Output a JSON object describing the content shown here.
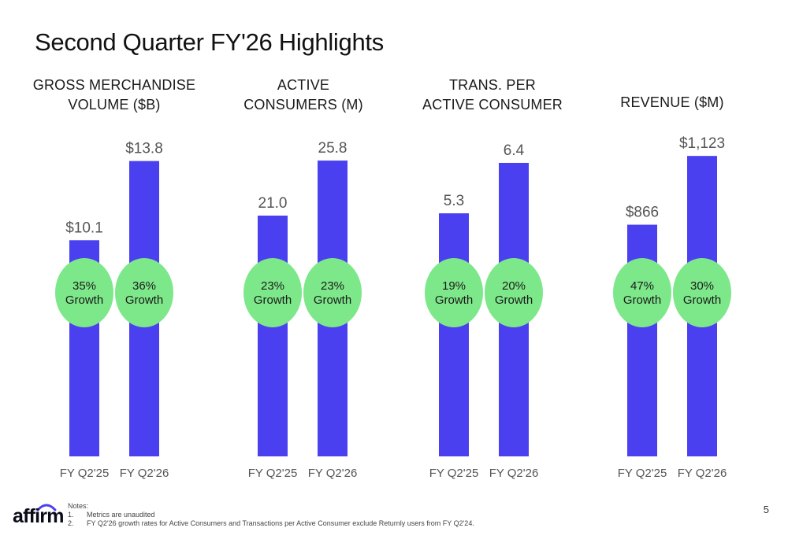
{
  "title": "Second Quarter FY'26 Highlights",
  "colors": {
    "bar": "#4b40f0",
    "growth_bubble": "#7de88a",
    "text": "#1a1a1a",
    "value_label": "#555555"
  },
  "chart_data": [
    {
      "type": "bar",
      "title_lines": [
        "GROSS MERCHANDISE",
        "VOLUME ($B)"
      ],
      "categories": [
        "FY Q2'25",
        "FY Q2'26"
      ],
      "values": [
        10.1,
        13.8
      ],
      "value_labels": [
        "$10.1",
        "$13.8"
      ],
      "growth": [
        [
          "35%",
          "Growth"
        ],
        [
          "36%",
          "Growth"
        ]
      ],
      "ylim": [
        0,
        15.0
      ]
    },
    {
      "type": "bar",
      "title_lines": [
        "ACTIVE",
        "CONSUMERS (M)"
      ],
      "categories": [
        "FY Q2'25",
        "FY Q2'26"
      ],
      "values": [
        21.0,
        25.8
      ],
      "value_labels": [
        "21.0",
        "25.8"
      ],
      "growth": [
        [
          "23%",
          "Growth"
        ],
        [
          "23%",
          "Growth"
        ]
      ],
      "ylim": [
        0,
        28.0
      ]
    },
    {
      "type": "bar",
      "title_lines": [
        "TRANS. PER",
        "ACTIVE CONSUMER"
      ],
      "categories": [
        "FY Q2'25",
        "FY Q2'26"
      ],
      "values": [
        5.3,
        6.4
      ],
      "value_labels": [
        "5.3",
        "6.4"
      ],
      "growth": [
        [
          "19%",
          "Growth"
        ],
        [
          "20%",
          "Growth"
        ]
      ],
      "ylim": [
        0,
        7.0
      ]
    },
    {
      "type": "bar",
      "title_lines": [
        "REVENUE ($M)"
      ],
      "categories": [
        "FY Q2'25",
        "FY Q2'26"
      ],
      "values": [
        866,
        1123
      ],
      "value_labels": [
        "$866",
        "$1,123"
      ],
      "growth": [
        [
          "47%",
          "Growth"
        ],
        [
          "30%",
          "Growth"
        ]
      ],
      "ylim": [
        0,
        1200
      ]
    }
  ],
  "notes": {
    "heading": "Notes:",
    "items": [
      {
        "num": "1.",
        "text": "Metrics are unaudited"
      },
      {
        "num": "2.",
        "text": "FY Q2'26 growth rates for Active Consumers and Transactions per Active Consumer exclude Returnly users from FY Q2'24."
      }
    ]
  },
  "logo_text": "affirm",
  "page_number": "5"
}
